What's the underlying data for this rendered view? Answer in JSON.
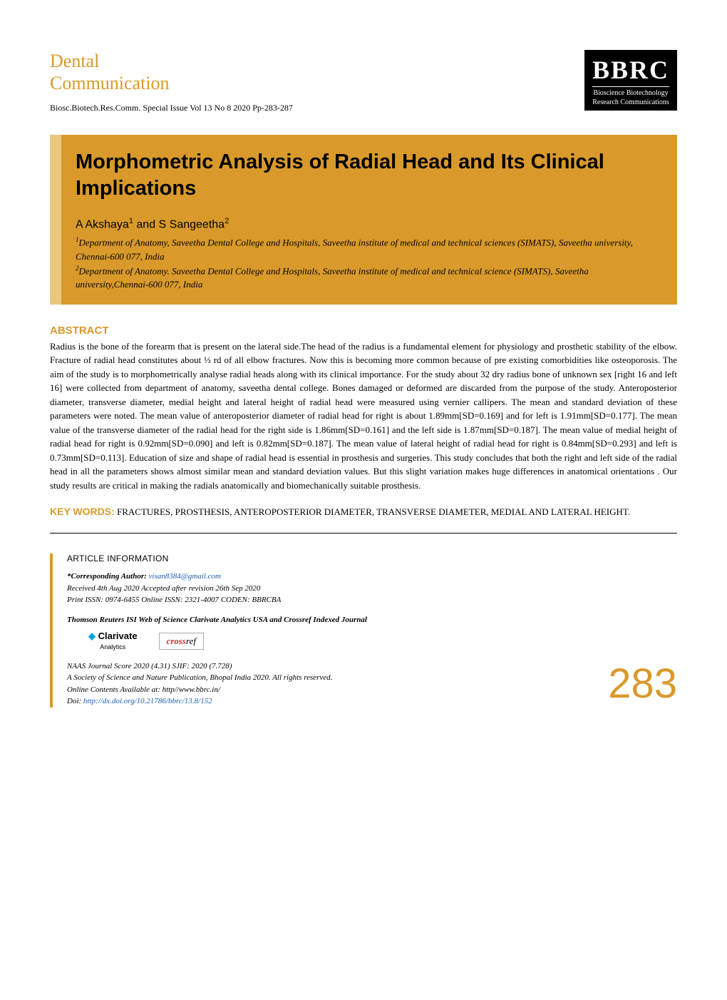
{
  "header": {
    "journal_category_line1": "Dental",
    "journal_category_line2": "Communication",
    "citation": "Biosc.Biotech.Res.Comm. Special Issue Vol 13 No 8 2020 Pp-283-287",
    "logo_main": "BBRC",
    "logo_sub1": "Bioscience Biotechnology",
    "logo_sub2": "Research Communications"
  },
  "title_block": {
    "article_title": "Morphometric Analysis of Radial Head and Its Clinical Implications",
    "authors_html": "A Akshaya<span class='sup'>1</span> and S Sangeetha<span class='sup'>2</span>",
    "affiliation1": "<span class='sup'>1</span>Department of Anatomy, Saveetha Dental College and Hospitals, Saveetha institute of medical and technical sciences (SIMATS), Saveetha university, Chennai-600 077, India",
    "affiliation2": "<span class='sup'>2</span>Department of Anatomy. Saveetha Dental College and Hospitals, Saveetha institute of medical and technical science (SIMATS), Saveetha university,Chennai-600 077, India"
  },
  "abstract": {
    "heading": "ABSTRACT",
    "text": "Radius is the bone of the forearm that is present on the lateral side.The head of the radius is a fundamental element for physiology and prosthetic stability of the elbow. Fracture of radial head constitutes about ⅓ rd of all elbow fractures. Now this is becoming more common because of pre existing comorbidities like osteoporosis. The aim of the study is to morphometrically analyse radial heads along with its clinical importance.  For the study about 32 dry radius bone of unknown sex [right 16 and left 16] were collected from department of anatomy, saveetha dental college. Bones damaged or deformed are discarded from the purpose of the study. Anteroposterior diameter, transverse diameter, medial height and lateral height of radial head were  measured using vernier callipers. The mean and standard deviation of these parameters were noted. The mean value of anteroposterior diameter of radial head for right  is about 1.89mm[SD=0.169] and for left is 1.91mm[SD=0.177]. The mean value of the transverse  diameter of the radial head for the right side is 1.86mm[SD=0.161] and the left side is 1.87mm[SD=0.187]. The mean value of medial height of radial head for right is 0.92mm[SD=0.090] and left is 0.82mm[SD=0.187]. The mean value of lateral height of radial head for right is 0.84mm[SD=0.293] and left is 0.73mm[SD=0.113]. Education of size and shape of radial head is essential in prosthesis and surgeries. This study concludes that both the right and left side of the radial head in all the parameters shows almost similar mean and standard deviation values. But this slight variation makes huge differences in anatomical orientations  . Our study results are critical in making the radials anatomically and biomechanically suitable prosthesis."
  },
  "keywords": {
    "label": "KEY WORDS:",
    "text": " FRACTURES, PROSTHESIS, ANTEROPOSTERIOR DIAMETER, TRANSVERSE DIAMETER, MEDIAL AND LATERAL HEIGHT."
  },
  "article_info": {
    "heading": "ARTICLE INFORMATION",
    "corresponding_label": "*Corresponding Author: ",
    "corresponding_email": "visan8384@gmail.com",
    "received": "Received 4th Aug 2020 Accepted after revision 26th Sep 2020",
    "issn": "Print ISSN: 0974-6455 Online ISSN: 2321-4007 CODEN: BBRCBA",
    "indexing": "Thomson Reuters ISI Web of Science Clarivate Analytics USA and Crossref Indexed Journal",
    "badge_clarivate": "Clarivate",
    "badge_clarivate_sub": "Analytics",
    "badge_crossref_pre": "cross",
    "badge_crossref_suf": "ref",
    "naas": "NAAS Journal Score 2020 (4.31) SJIF: 2020 (7.728)",
    "society": "A Society of Science and Nature Publication, Bhopal India 2020. All rights reserved.",
    "online": "Online Contents Available at: http//www.bbrc.in/",
    "doi_label": "Doi: ",
    "doi": "http://dx.doi.org/10.21786/bbrc/13.8/152"
  },
  "page_number": "283",
  "colors": {
    "accent": "#d99a2b",
    "accent_light": "#e8c880",
    "link": "#1a5fb4",
    "text": "#000000",
    "background": "#ffffff"
  }
}
